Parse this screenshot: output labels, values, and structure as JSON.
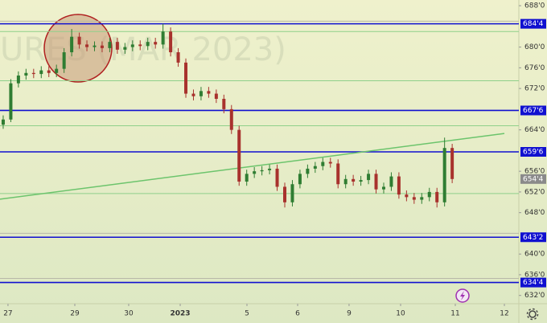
{
  "chart_data": {
    "type": "candlestick",
    "watermark": "URES (MAR 2023)",
    "up_color": "#2f7d32",
    "down_color": "#a8322d",
    "open": [
      665,
      666,
      673,
      674.5,
      675,
      674.8,
      675.5,
      675,
      675.8,
      679,
      682,
      680.5,
      680,
      680.3,
      679.8,
      681,
      679.5,
      680,
      680.5,
      680.2,
      681,
      680.5,
      683,
      679,
      677,
      671,
      670.5,
      671.5,
      671,
      670,
      668,
      664,
      654,
      655.5,
      656,
      656.2,
      656.5,
      653,
      650,
      653.5,
      655.5,
      656.5,
      657,
      657.8,
      657.5,
      653.5,
      654.5,
      654,
      654.3,
      655.5,
      652.5,
      653,
      655,
      651.5,
      651,
      650.5,
      651,
      652,
      650,
      660.5
    ],
    "high": [
      666.8,
      673.8,
      675.3,
      675.8,
      675.8,
      676.3,
      676.3,
      676.6,
      679.8,
      683.5,
      682.8,
      681.3,
      681.1,
      681.1,
      681.8,
      681.8,
      680.8,
      681.3,
      681.3,
      681.8,
      681.8,
      684.5,
      683.8,
      679.8,
      677.8,
      671.8,
      672.3,
      672.3,
      671.8,
      670.8,
      668.8,
      664.8,
      656.3,
      656.8,
      657,
      657.3,
      657.3,
      653.8,
      654.3,
      656.3,
      657.3,
      657.8,
      658.6,
      658.6,
      658.3,
      655.3,
      655.3,
      655.1,
      656.3,
      656.3,
      653.8,
      655.8,
      655.8,
      652.3,
      651.8,
      651.8,
      652.8,
      652.8,
      662.5,
      661.3
    ],
    "low": [
      664.2,
      665.5,
      672.2,
      673.7,
      674,
      674,
      674.2,
      674.2,
      675,
      678.2,
      679.7,
      679.2,
      679.2,
      679,
      679,
      678.7,
      678.7,
      679.2,
      679.4,
      679.4,
      679.7,
      679.7,
      678.2,
      676.2,
      670.2,
      669.7,
      669.7,
      670.2,
      669.2,
      667.2,
      663.2,
      653.2,
      653.2,
      654.7,
      655.2,
      655.4,
      652.2,
      649,
      649.2,
      652.7,
      654.7,
      655.7,
      656.2,
      656.7,
      652.7,
      652.7,
      653.2,
      653.2,
      653.5,
      651.7,
      651.7,
      652.2,
      650.7,
      650.2,
      649.7,
      649.7,
      650.2,
      649,
      649.2,
      653.7
    ],
    "close": [
      666,
      673,
      674.5,
      675,
      674.8,
      675.5,
      675,
      675.8,
      679,
      682,
      680.5,
      680,
      680.3,
      679.8,
      681,
      679.5,
      680,
      680.5,
      680.2,
      681,
      680.5,
      683,
      679,
      677,
      671,
      670.5,
      671.5,
      671,
      670,
      668,
      664,
      654,
      655.5,
      656,
      656.2,
      656.5,
      653,
      650,
      653.5,
      655.5,
      656.5,
      657,
      657.8,
      657.5,
      653.5,
      654.5,
      654,
      654.3,
      655.5,
      652.5,
      653,
      655,
      651.5,
      651,
      650.5,
      651,
      652,
      650,
      660.5,
      654.5
    ],
    "xlim": [
      -0.42,
      67.76
    ],
    "ylim": [
      630.4,
      689.1
    ],
    "xticks": [
      {
        "value": 0.63,
        "label": "27"
      },
      {
        "value": 9.41,
        "label": "29"
      },
      {
        "value": 16.49,
        "label": "30"
      },
      {
        "value": 23.26,
        "label": "2023"
      },
      {
        "value": 32.03,
        "label": "5"
      },
      {
        "value": 38.69,
        "label": "6"
      },
      {
        "value": 45.45,
        "label": "9"
      },
      {
        "value": 52.22,
        "label": "10"
      },
      {
        "value": 59.41,
        "label": "11"
      },
      {
        "value": 65.86,
        "label": "12"
      }
    ],
    "yticks": [
      {
        "value": 688,
        "label": "688'0"
      },
      {
        "value": 680,
        "label": "680'0"
      },
      {
        "value": 676,
        "label": "676'0"
      },
      {
        "value": 672,
        "label": "672'0"
      },
      {
        "value": 664,
        "label": "664'0"
      },
      {
        "value": 656,
        "label": "656'0"
      },
      {
        "value": 652,
        "label": "652'0"
      },
      {
        "value": 648,
        "label": "648'0"
      },
      {
        "value": 640,
        "label": "640'0"
      },
      {
        "value": 636,
        "label": "636'0"
      },
      {
        "value": 632,
        "label": "632'0"
      }
    ],
    "levels": [
      {
        "value": 684.5,
        "label": "684'4"
      },
      {
        "value": 667.75,
        "label": "667'6"
      },
      {
        "value": 659.75,
        "label": "659'6"
      },
      {
        "value": 643.25,
        "label": "643'2"
      },
      {
        "value": 634.5,
        "label": "634'4"
      }
    ],
    "level_color": "#1010d0",
    "last_price": {
      "value": 654.5,
      "label": "654'4"
    },
    "green_lines": [
      683,
      673.5,
      664.8,
      651.7
    ],
    "gray_lines": [
      685,
      644,
      635.3
    ],
    "trendline": {
      "x": [
        -0.42,
        65.86
      ],
      "y": [
        650.6,
        663.3
      ],
      "color": "#6cc46c"
    }
  }
}
